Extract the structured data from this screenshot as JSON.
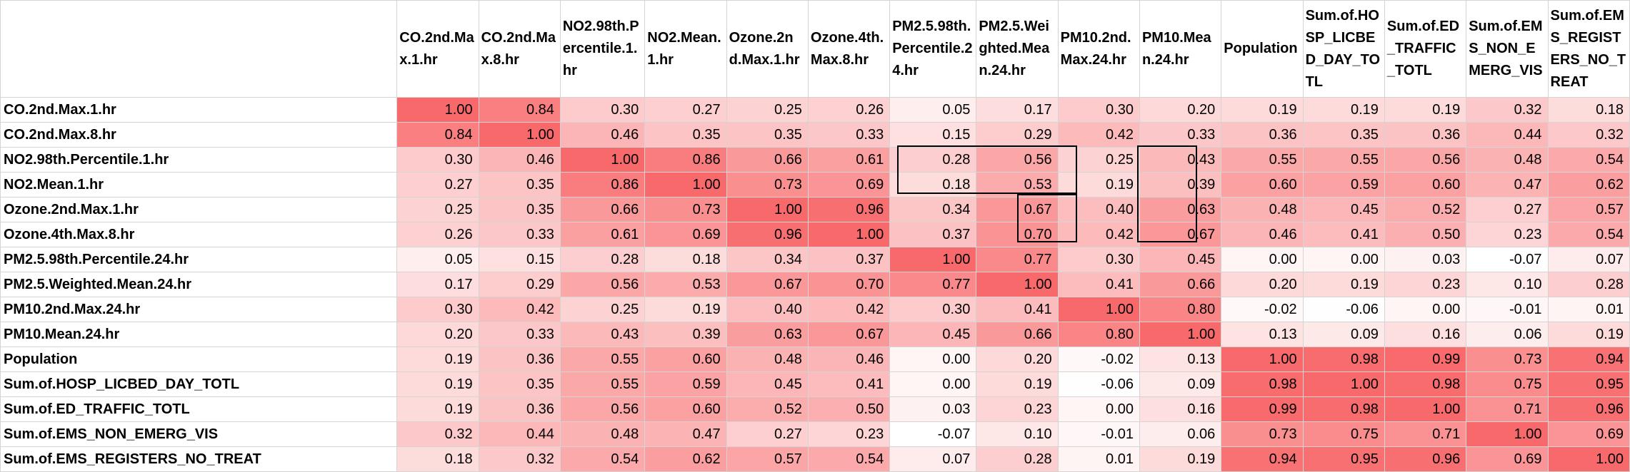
{
  "chart_data": {
    "type": "heatmap",
    "labels": [
      "CO.2nd.Max.1.hr",
      "CO.2nd.Max.8.hr",
      "NO2.98th.Percentile.1.hr",
      "NO2.Mean.1.hr",
      "Ozone.2nd.Max.1.hr",
      "Ozone.4th.Max.8.hr",
      "PM2.5.98th.Percentile.24.hr",
      "PM2.5.Weighted.Mean.24.hr",
      "PM10.2nd.Max.24.hr",
      "PM10.Mean.24.hr",
      "Population",
      "Sum.of.HOSP_LICBED_DAY_TOTL",
      "Sum.of.ED_TRAFFIC_TOTL",
      "Sum.of.EMS_NON_EMERG_VIS",
      "Sum.of.EMS_REGISTERS_NO_TREAT"
    ],
    "values": [
      [
        1.0,
        0.84,
        0.3,
        0.27,
        0.25,
        0.26,
        0.05,
        0.17,
        0.3,
        0.2,
        0.19,
        0.19,
        0.19,
        0.32,
        0.18
      ],
      [
        0.84,
        1.0,
        0.46,
        0.35,
        0.35,
        0.33,
        0.15,
        0.29,
        0.42,
        0.33,
        0.36,
        0.35,
        0.36,
        0.44,
        0.32
      ],
      [
        0.3,
        0.46,
        1.0,
        0.86,
        0.66,
        0.61,
        0.28,
        0.56,
        0.25,
        0.43,
        0.55,
        0.55,
        0.56,
        0.48,
        0.54
      ],
      [
        0.27,
        0.35,
        0.86,
        1.0,
        0.73,
        0.69,
        0.18,
        0.53,
        0.19,
        0.39,
        0.6,
        0.59,
        0.6,
        0.47,
        0.62
      ],
      [
        0.25,
        0.35,
        0.66,
        0.73,
        1.0,
        0.96,
        0.34,
        0.67,
        0.4,
        0.63,
        0.48,
        0.45,
        0.52,
        0.27,
        0.57
      ],
      [
        0.26,
        0.33,
        0.61,
        0.69,
        0.96,
        1.0,
        0.37,
        0.7,
        0.42,
        0.67,
        0.46,
        0.41,
        0.5,
        0.23,
        0.54
      ],
      [
        0.05,
        0.15,
        0.28,
        0.18,
        0.34,
        0.37,
        1.0,
        0.77,
        0.3,
        0.45,
        0.0,
        0.0,
        0.03,
        -0.07,
        0.07
      ],
      [
        0.17,
        0.29,
        0.56,
        0.53,
        0.67,
        0.7,
        0.77,
        1.0,
        0.41,
        0.66,
        0.2,
        0.19,
        0.23,
        0.1,
        0.28
      ],
      [
        0.3,
        0.42,
        0.25,
        0.19,
        0.4,
        0.42,
        0.3,
        0.41,
        1.0,
        0.8,
        -0.02,
        -0.06,
        0.0,
        -0.01,
        0.01
      ],
      [
        0.2,
        0.33,
        0.43,
        0.39,
        0.63,
        0.67,
        0.45,
        0.66,
        0.8,
        1.0,
        0.13,
        0.09,
        0.16,
        0.06,
        0.19
      ],
      [
        0.19,
        0.36,
        0.55,
        0.6,
        0.48,
        0.46,
        0.0,
        0.2,
        -0.02,
        0.13,
        1.0,
        0.98,
        0.99,
        0.73,
        0.94
      ],
      [
        0.19,
        0.35,
        0.55,
        0.59,
        0.45,
        0.41,
        0.0,
        0.19,
        -0.06,
        0.09,
        0.98,
        1.0,
        0.98,
        0.75,
        0.95
      ],
      [
        0.19,
        0.36,
        0.56,
        0.6,
        0.52,
        0.5,
        0.03,
        0.23,
        0.0,
        0.16,
        0.99,
        0.98,
        1.0,
        0.71,
        0.96
      ],
      [
        0.32,
        0.44,
        0.48,
        0.47,
        0.27,
        0.23,
        -0.07,
        0.1,
        -0.01,
        0.06,
        0.73,
        0.75,
        0.71,
        1.0,
        0.69
      ],
      [
        0.18,
        0.32,
        0.54,
        0.62,
        0.57,
        0.54,
        0.07,
        0.28,
        0.01,
        0.19,
        0.94,
        0.95,
        0.96,
        0.69,
        1.0
      ]
    ],
    "range": [
      -0.07,
      1.0
    ],
    "colors": {
      "low": "#ffffff",
      "high": "#f8696b"
    },
    "highlighted_blocks": [
      {
        "rows": [
          2,
          3
        ],
        "cols": [
          10,
          12
        ]
      },
      {
        "rows": [
          2,
          5
        ],
        "cols": [
          14,
          14
        ]
      },
      {
        "rows": [
          4,
          5
        ],
        "cols": [
          12,
          12
        ]
      }
    ]
  }
}
